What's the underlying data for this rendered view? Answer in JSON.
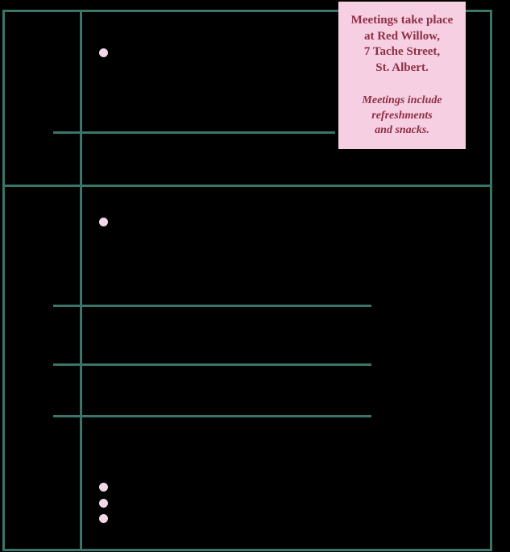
{
  "page": {
    "background_color": "#000000"
  },
  "schedule_table": {
    "grid_color": "#3b7569",
    "columns": 2,
    "visible_cell_text": ""
  },
  "bullets": {
    "color": "#f2d8e6",
    "count": 5
  },
  "notice_card": {
    "background_color": "#f6cfe2",
    "text_color": "#8f2e44",
    "location_lines": [
      "Meetings take place",
      "at Red Willow,",
      "7 Tache Street,",
      "St. Albert."
    ],
    "refreshments_lines": [
      "Meetings include",
      "refreshments",
      "and snacks."
    ]
  }
}
